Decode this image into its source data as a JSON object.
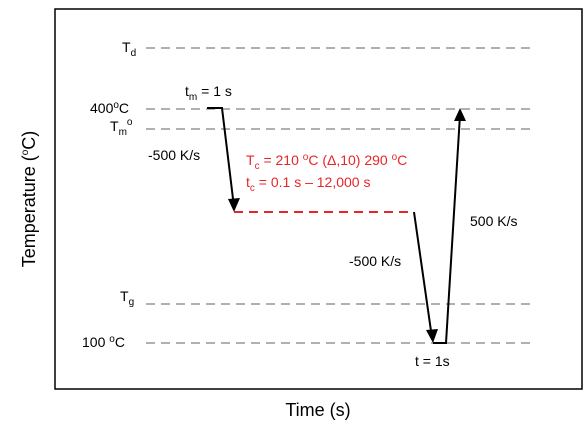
{
  "axes": {
    "x_title": "Time (s)",
    "y_title_main": "Temperature (",
    "y_title_sup": "o",
    "y_title_end": "C)"
  },
  "levels": {
    "td": {
      "main": "T",
      "sub": "d"
    },
    "t400": {
      "main": "400",
      "sup": "o",
      "end": "C"
    },
    "tm": {
      "main": "T",
      "sub": "m",
      "sup": "o"
    },
    "tg": {
      "main": "T",
      "sub": "g"
    },
    "t100": {
      "main": "100 ",
      "sup": "o",
      "end": "C"
    }
  },
  "annotations": {
    "tm_time": {
      "main": "t",
      "sub": "m",
      "end": " = 1 s"
    },
    "rate_cool1": "-500 K/s",
    "rate_cool2": "-500 K/s",
    "rate_heat": "500 K/s",
    "t_hold": "t = 1s",
    "tc_line": {
      "main": "T",
      "sub": "c",
      "mid": " = 210 ",
      "sup1": "o",
      "rest": "C (Δ,10) 290 ",
      "sup2": "o",
      "end": "C"
    },
    "tc_time": {
      "main": "t",
      "sub": "c",
      "end": " = 0.1 s – 12,000 s"
    }
  },
  "colors": {
    "accent_red": "#e8262a",
    "dashed_gray": "#b0b0b0"
  }
}
